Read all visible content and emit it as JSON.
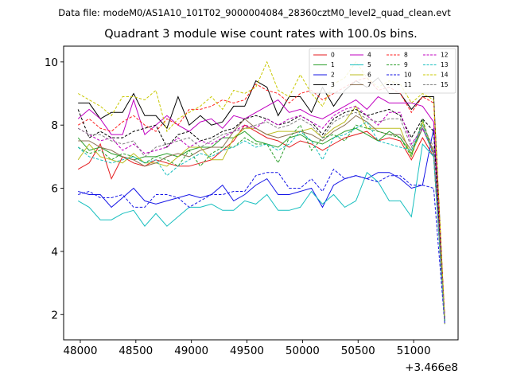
{
  "figure": {
    "suptitle": "Data file: modeM0/AS1A10_101T02_9000004084_28360cztM0_level2_quad_clean.evt",
    "title": "Quadrant 3 module wise count rates with 100.0s bins."
  },
  "chart_data": {
    "type": "line",
    "title": "Quadrant 3 module wise count rates with 100.0s bins.",
    "xlabel": "",
    "ylabel": "",
    "x_offset_label": "+3.466e8",
    "x_offset": 346600000,
    "xlim": [
      47850,
      51400
    ],
    "ylim": [
      1.2,
      10.5
    ],
    "xticks": [
      48000,
      48500,
      49000,
      49500,
      50000,
      50500,
      51000
    ],
    "xtick_labels": [
      "48000",
      "48500",
      "49000",
      "49500",
      "50000",
      "50500",
      "51000"
    ],
    "yticks": [
      2,
      4,
      6,
      8,
      10
    ],
    "ytick_labels": [
      "2",
      "4",
      "6",
      "8",
      "10"
    ],
    "grid": false,
    "legend": {
      "placement": "top-right",
      "columns": 4
    },
    "x": [
      47980,
      48080,
      48180,
      48280,
      48380,
      48480,
      48580,
      48680,
      48780,
      48880,
      48980,
      49080,
      49180,
      49280,
      49380,
      49480,
      49580,
      49680,
      49780,
      49880,
      49980,
      50080,
      50180,
      50280,
      50380,
      50480,
      50580,
      50680,
      50780,
      50880,
      50980,
      51080,
      51180,
      51280
    ],
    "series": [
      {
        "name": "0",
        "color": "#e41a1c",
        "dash": false,
        "values": [
          6.6,
          6.8,
          7.4,
          6.3,
          7.0,
          6.8,
          6.7,
          6.9,
          6.8,
          6.7,
          6.7,
          6.8,
          6.9,
          7.2,
          7.5,
          8.0,
          7.8,
          7.6,
          7.5,
          7.3,
          7.5,
          7.4,
          7.2,
          7.4,
          7.6,
          7.7,
          7.8,
          7.5,
          7.6,
          7.5,
          6.9,
          7.6,
          7.0,
          1.8
        ]
      },
      {
        "name": "1",
        "color": "#2ca02c",
        "dash": false,
        "values": [
          7.6,
          7.2,
          7.3,
          7.1,
          7.0,
          6.9,
          7.0,
          7.0,
          7.1,
          7.0,
          7.2,
          7.3,
          7.3,
          7.6,
          7.6,
          7.8,
          7.5,
          7.4,
          7.3,
          7.6,
          7.7,
          7.5,
          7.4,
          7.6,
          7.8,
          7.9,
          7.7,
          7.5,
          7.8,
          7.6,
          7.1,
          7.9,
          7.1,
          1.7
        ]
      },
      {
        "name": "2",
        "color": "#1515e6",
        "dash": false,
        "values": [
          5.9,
          5.8,
          5.8,
          5.4,
          5.7,
          6.0,
          5.6,
          5.5,
          5.6,
          5.7,
          5.8,
          5.7,
          5.8,
          6.1,
          5.6,
          5.8,
          6.1,
          6.3,
          5.8,
          5.8,
          5.9,
          6.0,
          5.4,
          6.1,
          6.3,
          6.4,
          6.3,
          6.5,
          6.5,
          6.3,
          6.0,
          6.1,
          7.9,
          1.9
        ]
      },
      {
        "name": "3",
        "color": "#000000",
        "dash": false,
        "values": [
          8.7,
          8.7,
          8.2,
          8.4,
          8.4,
          9.0,
          8.3,
          8.3,
          7.9,
          8.9,
          8.0,
          8.3,
          8.0,
          8.1,
          8.6,
          8.6,
          9.4,
          9.2,
          8.3,
          8.9,
          8.9,
          8.4,
          9.2,
          8.6,
          9.1,
          9.4,
          9.2,
          9.5,
          9.0,
          9.0,
          8.5,
          8.9,
          8.9,
          1.8
        ]
      },
      {
        "name": "4",
        "color": "#c000c0",
        "dash": false,
        "values": [
          8.2,
          8.5,
          8.2,
          7.7,
          7.7,
          8.8,
          7.7,
          8.0,
          8.3,
          8.0,
          7.8,
          8.1,
          8.2,
          7.9,
          8.3,
          8.2,
          8.4,
          8.6,
          8.8,
          8.4,
          8.5,
          8.3,
          8.2,
          8.4,
          8.6,
          8.8,
          8.5,
          8.9,
          8.7,
          8.7,
          8.7,
          8.6,
          8.1,
          1.9
        ]
      },
      {
        "name": "5",
        "color": "#17bfbf",
        "dash": false,
        "values": [
          5.6,
          5.4,
          5.0,
          5.0,
          5.2,
          5.3,
          4.8,
          5.2,
          4.8,
          5.1,
          5.4,
          5.4,
          5.5,
          5.3,
          5.3,
          5.6,
          5.5,
          5.8,
          5.3,
          5.3,
          5.4,
          5.9,
          5.5,
          5.8,
          5.4,
          5.6,
          6.5,
          6.2,
          5.6,
          5.6,
          5.1,
          7.4,
          7.0,
          1.8
        ]
      },
      {
        "name": "6",
        "color": "#bcbd22",
        "dash": false,
        "values": [
          6.9,
          7.4,
          7.0,
          6.9,
          6.8,
          7.1,
          6.8,
          6.8,
          6.7,
          7.0,
          7.3,
          7.3,
          6.9,
          6.9,
          7.6,
          7.9,
          7.9,
          7.7,
          7.8,
          7.8,
          7.8,
          7.9,
          7.6,
          7.9,
          8.1,
          8.6,
          7.9,
          7.9,
          7.9,
          7.9,
          7.0,
          8.1,
          7.1,
          1.7
        ]
      },
      {
        "name": "7",
        "color": "#8c7052",
        "dash": false,
        "values": [
          7.5,
          7.5,
          7.3,
          7.2,
          7.0,
          6.9,
          6.7,
          6.8,
          7.0,
          7.1,
          7.0,
          7.2,
          7.3,
          7.3,
          7.8,
          8.2,
          7.9,
          7.7,
          7.6,
          7.7,
          7.8,
          7.7,
          7.5,
          7.8,
          8.0,
          8.3,
          8.1,
          7.8,
          7.7,
          7.7,
          7.2,
          7.9,
          7.2,
          1.8
        ]
      },
      {
        "name": "8",
        "color": "#ff2020",
        "dash": true,
        "values": [
          8.0,
          8.2,
          7.9,
          7.8,
          8.1,
          8.3,
          8.0,
          7.8,
          8.2,
          8.0,
          8.5,
          8.5,
          8.6,
          8.8,
          8.7,
          8.8,
          9.3,
          9.1,
          9.0,
          8.7,
          9.0,
          9.1,
          8.8,
          9.0,
          9.2,
          9.4,
          9.5,
          9.1,
          9.2,
          9.0,
          8.4,
          8.9,
          8.7,
          1.9
        ]
      },
      {
        "name": "9",
        "color": "#2ca02c",
        "dash": true,
        "values": [
          7.3,
          7.1,
          7.2,
          6.9,
          7.1,
          7.0,
          6.8,
          7.0,
          6.9,
          6.7,
          7.2,
          6.7,
          7.1,
          7.3,
          7.3,
          7.6,
          7.4,
          7.4,
          6.8,
          7.6,
          8.0,
          7.2,
          7.6,
          7.7,
          7.5,
          8.0,
          7.9,
          7.8,
          7.7,
          7.6,
          7.0,
          8.2,
          7.0,
          1.8
        ]
      },
      {
        "name": "10",
        "color": "#1515e6",
        "dash": true,
        "values": [
          5.8,
          5.9,
          5.7,
          5.7,
          5.8,
          5.4,
          5.4,
          5.8,
          5.8,
          5.7,
          5.4,
          5.6,
          5.8,
          5.8,
          5.9,
          5.9,
          6.4,
          6.5,
          6.5,
          6.0,
          6.0,
          6.3,
          5.9,
          6.6,
          6.3,
          6.4,
          6.3,
          6.2,
          6.4,
          6.4,
          6.1,
          6.1,
          6.0,
          1.7
        ]
      },
      {
        "name": "11",
        "color": "#000000",
        "dash": true,
        "values": [
          8.5,
          7.6,
          7.8,
          7.6,
          7.6,
          7.8,
          7.9,
          8.0,
          7.3,
          7.7,
          7.8,
          7.5,
          7.6,
          7.8,
          7.9,
          8.2,
          8.3,
          8.2,
          8.0,
          8.1,
          8.3,
          8.1,
          7.7,
          8.2,
          8.4,
          8.5,
          8.3,
          8.4,
          8.5,
          8.3,
          7.6,
          8.2,
          7.8,
          1.8
        ]
      },
      {
        "name": "12",
        "color": "#c000c0",
        "dash": true,
        "values": [
          7.9,
          7.7,
          7.5,
          7.6,
          7.2,
          7.4,
          7.1,
          7.2,
          7.3,
          7.6,
          7.3,
          7.5,
          7.4,
          7.6,
          7.8,
          8.0,
          7.9,
          8.2,
          8.0,
          8.2,
          8.3,
          8.1,
          7.9,
          8.3,
          8.5,
          8.6,
          8.3,
          8.0,
          8.4,
          8.4,
          7.4,
          7.9,
          7.1,
          1.9
        ]
      },
      {
        "name": "13",
        "color": "#17bfbf",
        "dash": true,
        "values": [
          7.3,
          7.0,
          6.9,
          6.8,
          6.9,
          7.0,
          6.8,
          6.9,
          6.4,
          6.7,
          6.9,
          7.1,
          7.0,
          7.2,
          7.3,
          7.5,
          7.3,
          7.4,
          7.2,
          7.4,
          7.8,
          7.5,
          6.9,
          7.6,
          7.7,
          7.9,
          8.1,
          7.5,
          7.4,
          7.3,
          7.2,
          8.0,
          7.0,
          1.8
        ]
      },
      {
        "name": "14",
        "color": "#c8c800",
        "dash": true,
        "values": [
          9.0,
          8.8,
          8.6,
          8.3,
          8.9,
          8.9,
          8.8,
          9.1,
          7.8,
          8.2,
          8.4,
          8.6,
          8.9,
          8.5,
          9.1,
          9.0,
          9.2,
          10.0,
          9.1,
          8.9,
          9.6,
          9.0,
          8.6,
          9.3,
          9.5,
          10.0,
          9.5,
          9.2,
          9.4,
          9.3,
          8.7,
          9.0,
          8.8,
          1.9
        ]
      },
      {
        "name": "15",
        "color": "#7f7f7f",
        "dash": true,
        "values": [
          7.9,
          7.7,
          7.7,
          7.5,
          7.4,
          7.5,
          7.0,
          7.3,
          7.4,
          7.5,
          7.6,
          7.3,
          7.5,
          7.7,
          7.8,
          7.9,
          8.0,
          8.1,
          7.9,
          8.0,
          8.2,
          8.0,
          7.6,
          8.1,
          8.3,
          8.4,
          8.2,
          8.1,
          8.2,
          8.2,
          7.3,
          8.0,
          7.3,
          1.8
        ]
      }
    ]
  }
}
